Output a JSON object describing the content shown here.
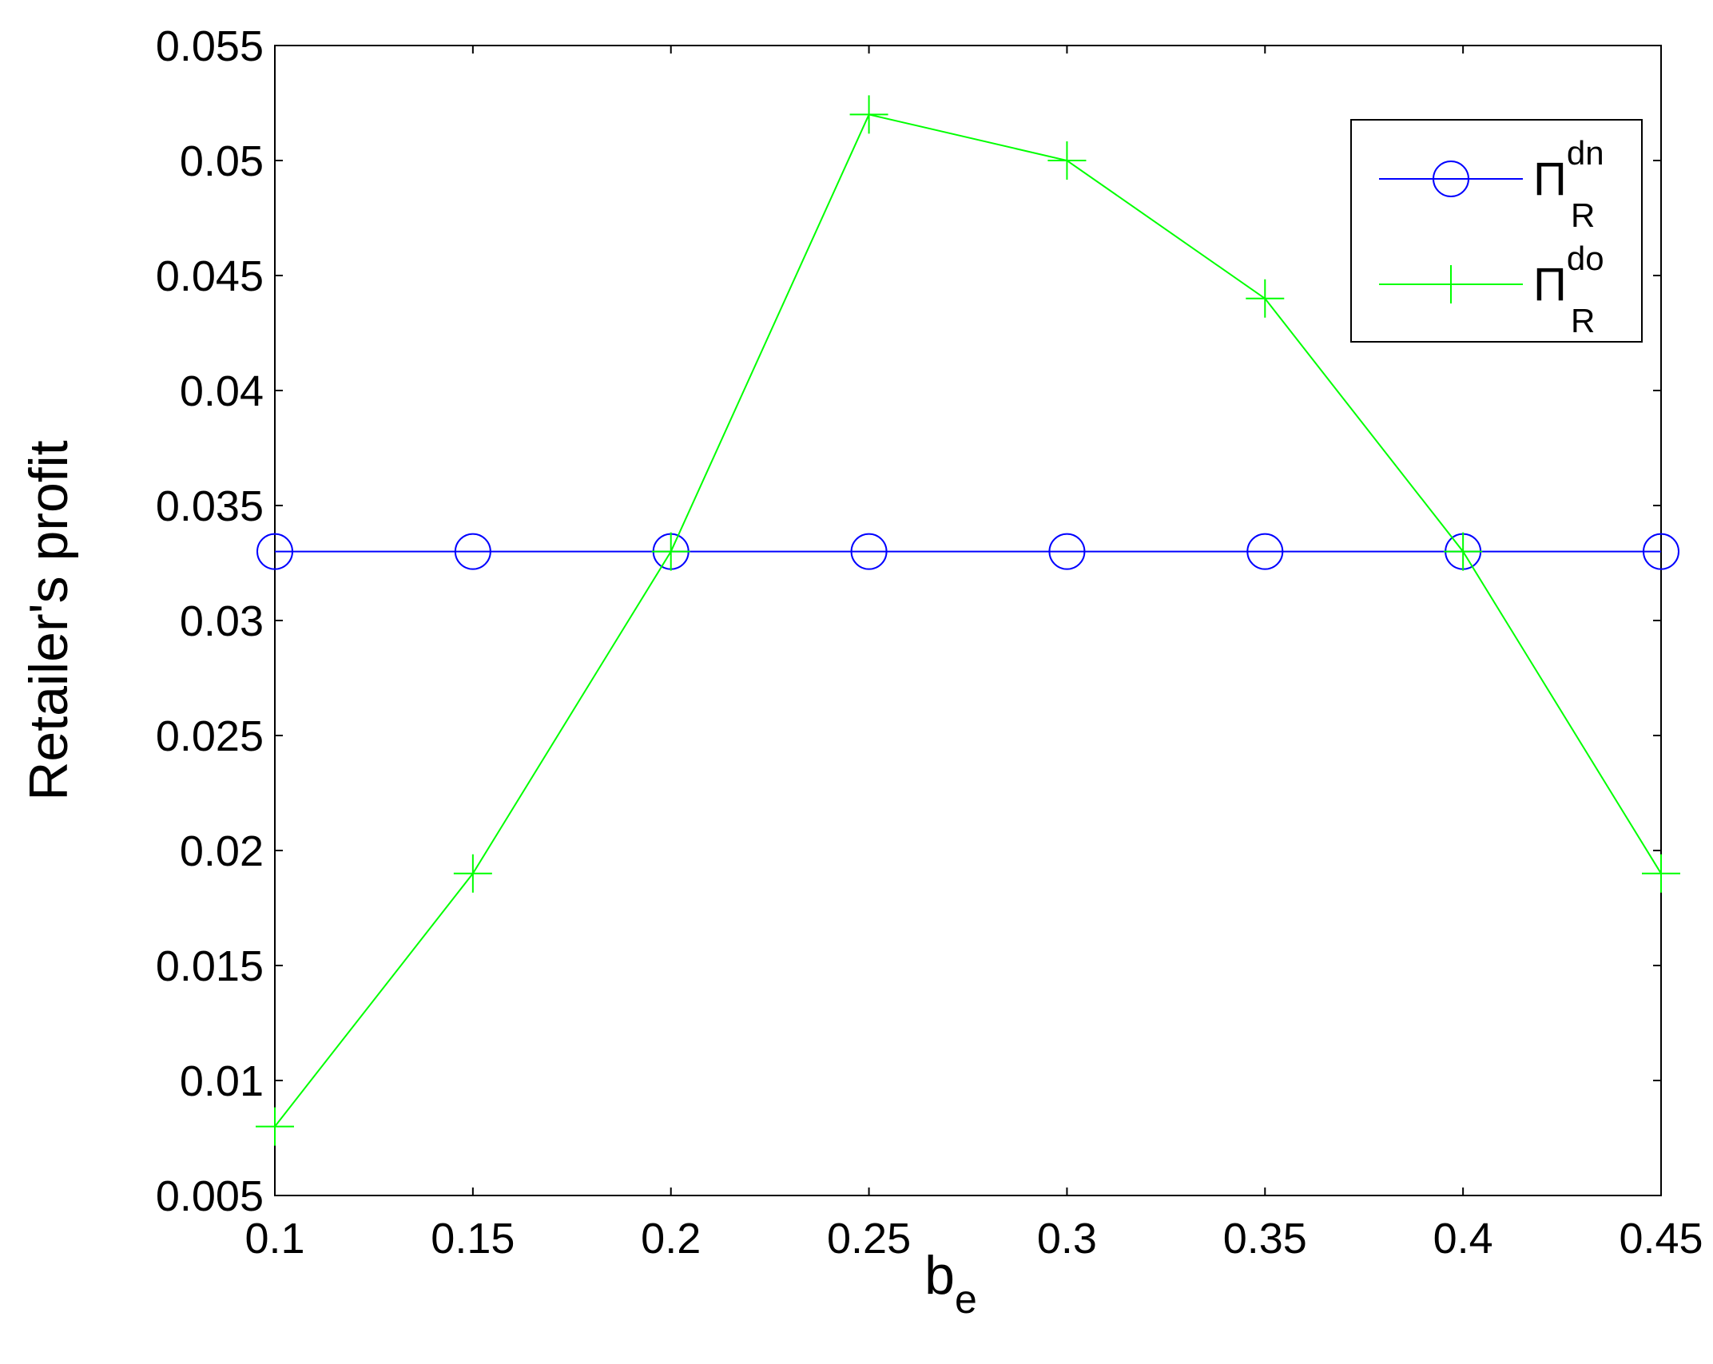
{
  "chart_data": {
    "type": "line",
    "y_label": "Retailer's profit",
    "x_label": {
      "text": "b",
      "subscript": "e"
    },
    "x": [
      0.1,
      0.15,
      0.2,
      0.25,
      0.3,
      0.35,
      0.4,
      0.45
    ],
    "series": [
      {
        "name": "Π",
        "subscript": "R",
        "superscript": "dn",
        "color": "#0000ff",
        "marker": "circle",
        "values": [
          0.033,
          0.033,
          0.033,
          0.033,
          0.033,
          0.033,
          0.033,
          0.033
        ]
      },
      {
        "name": "Π",
        "subscript": "R",
        "superscript": "do",
        "color": "#00ff00",
        "marker": "plus",
        "values": [
          0.008,
          0.019,
          0.033,
          0.052,
          0.05,
          0.044,
          0.033,
          0.019
        ]
      }
    ],
    "xlim": [
      0.1,
      0.45
    ],
    "xticks": [
      0.1,
      0.15,
      0.2,
      0.25,
      0.3,
      0.35,
      0.4,
      0.45
    ],
    "ylim": [
      0.005,
      0.055
    ],
    "yticks": [
      0.005,
      0.01,
      0.015,
      0.02,
      0.025,
      0.03,
      0.035,
      0.04,
      0.045,
      0.05,
      0.055
    ],
    "grid": false,
    "legend": "top-right"
  }
}
